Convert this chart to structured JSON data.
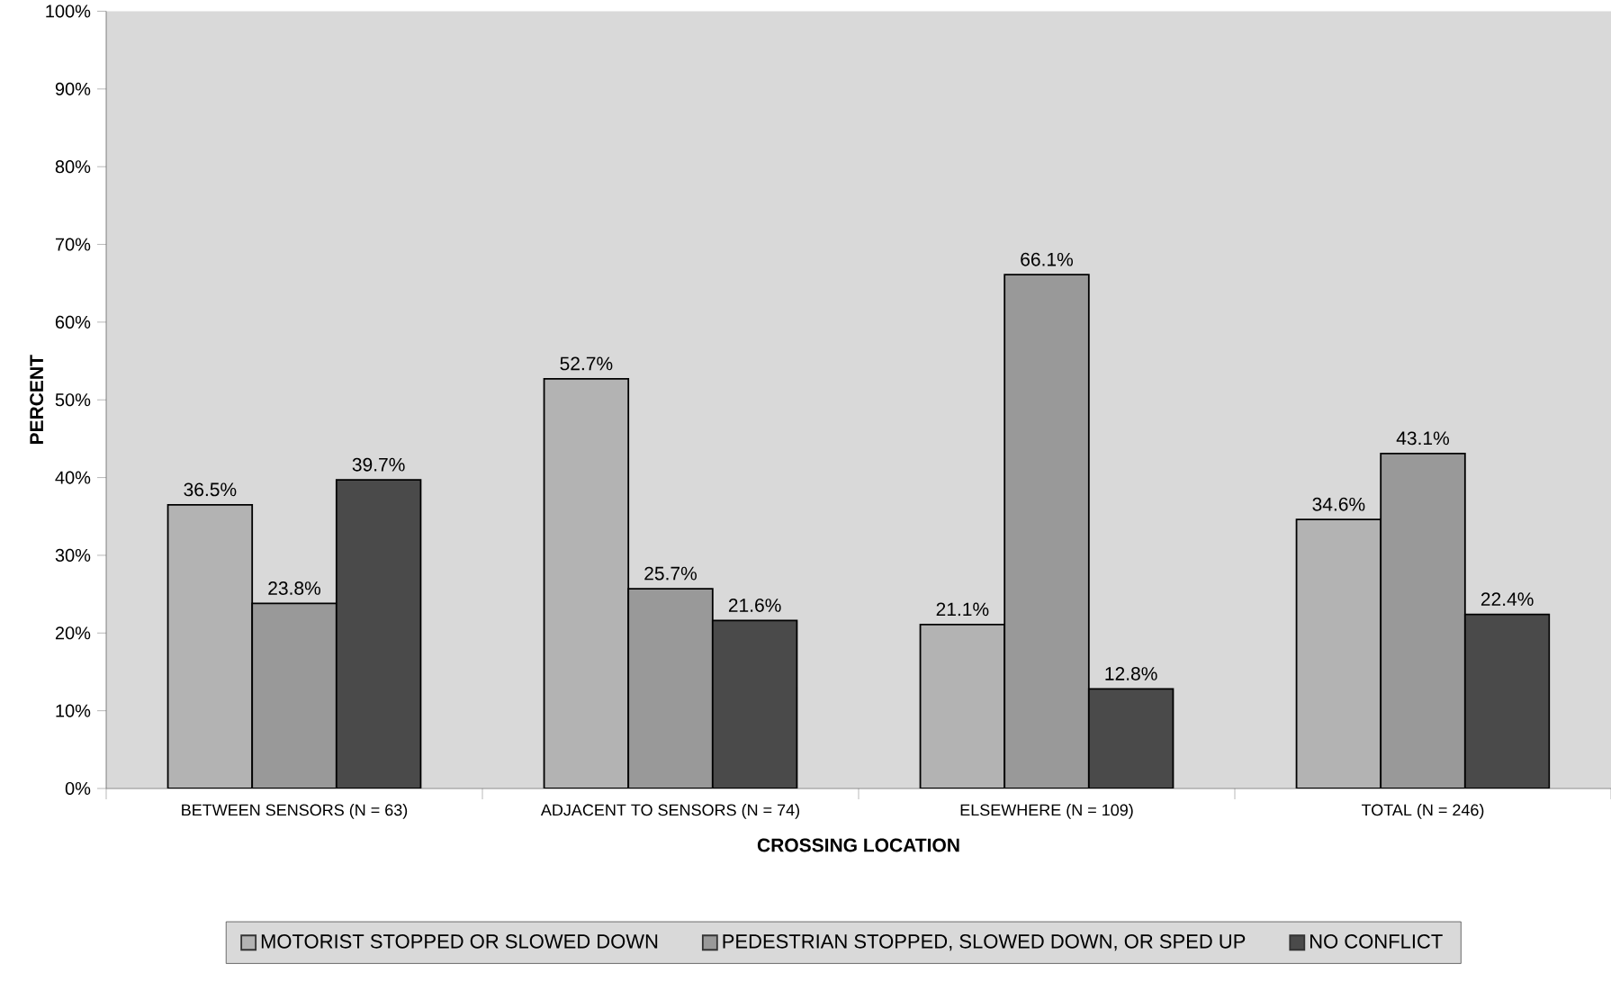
{
  "chart_data": {
    "type": "bar",
    "xlabel": "CROSSING LOCATION",
    "ylabel": "PERCENT",
    "categories": [
      "BETWEEN SENSORS (N = 63)",
      "ADJACENT TO SENSORS (N = 74)",
      "ELSEWHERE (N = 109)",
      "TOTAL (N = 246)"
    ],
    "series": [
      {
        "name": "MOTORIST STOPPED OR SLOWED DOWN",
        "color": "#b3b3b3",
        "values": [
          36.5,
          52.7,
          21.1,
          34.6
        ],
        "value_labels": [
          "36.5%",
          "52.7%",
          "21.1%",
          "34.6%"
        ]
      },
      {
        "name": "PEDESTRIAN STOPPED, SLOWED DOWN, OR SPED UP",
        "color": "#999999",
        "values": [
          23.8,
          25.7,
          66.1,
          43.1
        ],
        "value_labels": [
          "23.8%",
          "25.7%",
          "66.1%",
          "43.1%"
        ]
      },
      {
        "name": "NO CONFLICT",
        "color": "#4a4a4a",
        "values": [
          39.7,
          21.6,
          12.8,
          22.4
        ],
        "value_labels": [
          "39.7%",
          "21.6%",
          "12.8%",
          "22.4%"
        ]
      }
    ],
    "ylim": [
      0,
      100
    ],
    "yticks": [
      {
        "value": 0,
        "label": "0%"
      },
      {
        "value": 10,
        "label": "10%"
      },
      {
        "value": 20,
        "label": "20%"
      },
      {
        "value": 30,
        "label": "30%"
      },
      {
        "value": 40,
        "label": "40%"
      },
      {
        "value": 50,
        "label": "50%"
      },
      {
        "value": 60,
        "label": "60%"
      },
      {
        "value": 70,
        "label": "70%"
      },
      {
        "value": 80,
        "label": "80%"
      },
      {
        "value": 90,
        "label": "90%"
      },
      {
        "value": 100,
        "label": "100%"
      }
    ],
    "legend": "bottom"
  }
}
